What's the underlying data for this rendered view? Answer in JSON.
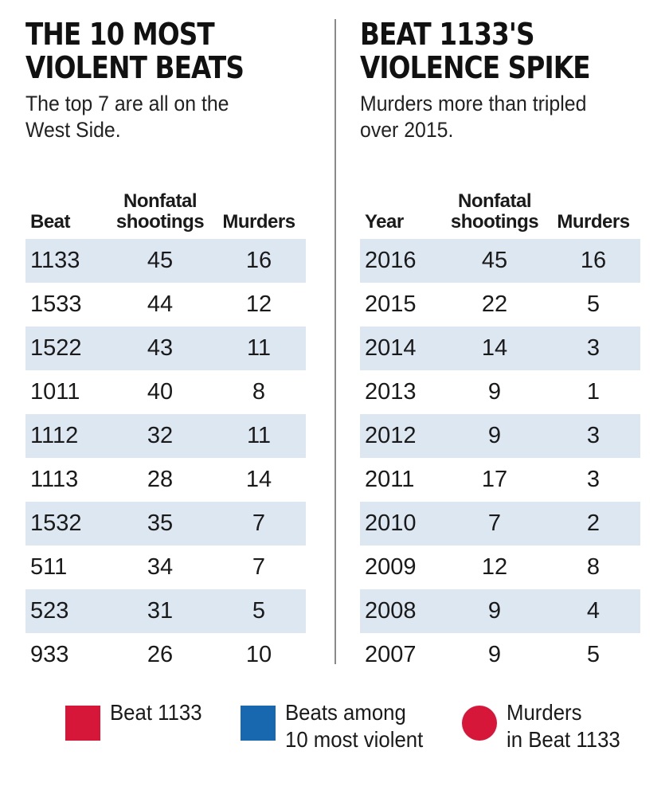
{
  "chart_data": [
    {
      "type": "table",
      "title": "THE 10 MOST\nVIOLENT BEATS",
      "subtitle": "The top 7 are all on the\nWest Side.",
      "columns": [
        "Beat",
        "Nonfatal\nshootings",
        "Murders"
      ],
      "rows": [
        [
          "1133",
          "45",
          "16"
        ],
        [
          "1533",
          "44",
          "12"
        ],
        [
          "1522",
          "43",
          "11"
        ],
        [
          "1011",
          "40",
          "8"
        ],
        [
          "1112",
          "32",
          "11"
        ],
        [
          "1113",
          "28",
          "14"
        ],
        [
          "1532",
          "35",
          "7"
        ],
        [
          "511",
          "34",
          "7"
        ],
        [
          "523",
          "31",
          "5"
        ],
        [
          "933",
          "26",
          "10"
        ]
      ]
    },
    {
      "type": "table",
      "title": "BEAT 1133'S\nVIOLENCE SPIKE",
      "subtitle": "Murders more than tripled\nover 2015.",
      "columns": [
        "Year",
        "Nonfatal\nshootings",
        "Murders"
      ],
      "rows": [
        [
          "2016",
          "45",
          "16"
        ],
        [
          "2015",
          "22",
          "5"
        ],
        [
          "2014",
          "14",
          "3"
        ],
        [
          "2013",
          "9",
          "1"
        ],
        [
          "2012",
          "9",
          "3"
        ],
        [
          "2011",
          "17",
          "3"
        ],
        [
          "2010",
          "7",
          "2"
        ],
        [
          "2009",
          "12",
          "8"
        ],
        [
          "2008",
          "9",
          "4"
        ],
        [
          "2007",
          "9",
          "5"
        ]
      ]
    }
  ],
  "legend": [
    {
      "label": "Beat 1133",
      "shape": "square",
      "color": "#d7173a"
    },
    {
      "label": "Beats among\n10 most violent",
      "shape": "square",
      "color": "#1868b0"
    },
    {
      "label": "Murders\nin Beat 1133",
      "shape": "circle",
      "color": "#d7173a"
    }
  ],
  "colors": {
    "row_stripe": "#dde7f1",
    "divider": "#8a8a8a"
  }
}
